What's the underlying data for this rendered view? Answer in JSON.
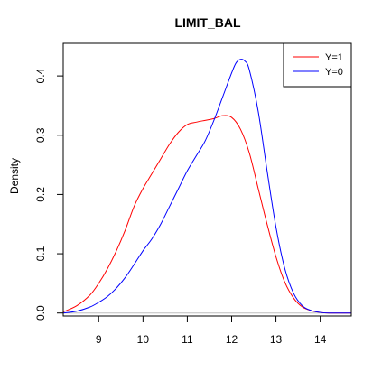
{
  "chart_data": {
    "type": "line",
    "title": "LIMIT_BAL",
    "xlabel": "",
    "ylabel": "Density",
    "xlim": [
      8.2,
      14.7
    ],
    "ylim": [
      -0.005,
      0.455
    ],
    "xticks": [
      9,
      10,
      11,
      12,
      13,
      14
    ],
    "yticks": [
      0.0,
      0.1,
      0.2,
      0.3,
      0.4
    ],
    "ytick_labels": [
      "0.0",
      "0.1",
      "0.2",
      "0.3",
      "0.4"
    ],
    "baseline": 0,
    "grid": false,
    "legend_position": "top-right",
    "series": [
      {
        "name": "Y=1",
        "color": "#ff0000",
        "x": [
          8.2,
          8.5,
          8.8,
          9.0,
          9.2,
          9.4,
          9.6,
          9.8,
          10.0,
          10.2,
          10.4,
          10.6,
          10.8,
          11.0,
          11.2,
          11.4,
          11.6,
          11.8,
          12.0,
          12.2,
          12.4,
          12.6,
          12.8,
          13.0,
          13.2,
          13.4,
          13.6,
          13.8,
          14.0,
          14.2,
          14.7
        ],
        "y": [
          0.002,
          0.012,
          0.03,
          0.05,
          0.075,
          0.105,
          0.14,
          0.18,
          0.21,
          0.235,
          0.26,
          0.285,
          0.305,
          0.318,
          0.322,
          0.325,
          0.328,
          0.333,
          0.33,
          0.31,
          0.27,
          0.21,
          0.15,
          0.095,
          0.052,
          0.025,
          0.01,
          0.004,
          0.001,
          0.0,
          0.0
        ]
      },
      {
        "name": "Y=0",
        "color": "#0000ff",
        "x": [
          8.2,
          8.5,
          8.8,
          9.0,
          9.2,
          9.4,
          9.6,
          9.8,
          10.0,
          10.2,
          10.4,
          10.6,
          10.8,
          11.0,
          11.2,
          11.4,
          11.6,
          11.8,
          12.0,
          12.1,
          12.2,
          12.3,
          12.4,
          12.6,
          12.8,
          13.0,
          13.2,
          13.4,
          13.6,
          13.8,
          14.0,
          14.2,
          14.7
        ],
        "y": [
          0.0,
          0.003,
          0.01,
          0.018,
          0.028,
          0.042,
          0.06,
          0.082,
          0.105,
          0.125,
          0.15,
          0.18,
          0.21,
          0.24,
          0.265,
          0.29,
          0.325,
          0.365,
          0.405,
          0.422,
          0.428,
          0.425,
          0.41,
          0.34,
          0.24,
          0.145,
          0.075,
          0.033,
          0.012,
          0.004,
          0.001,
          0.0,
          0.0
        ]
      }
    ]
  }
}
